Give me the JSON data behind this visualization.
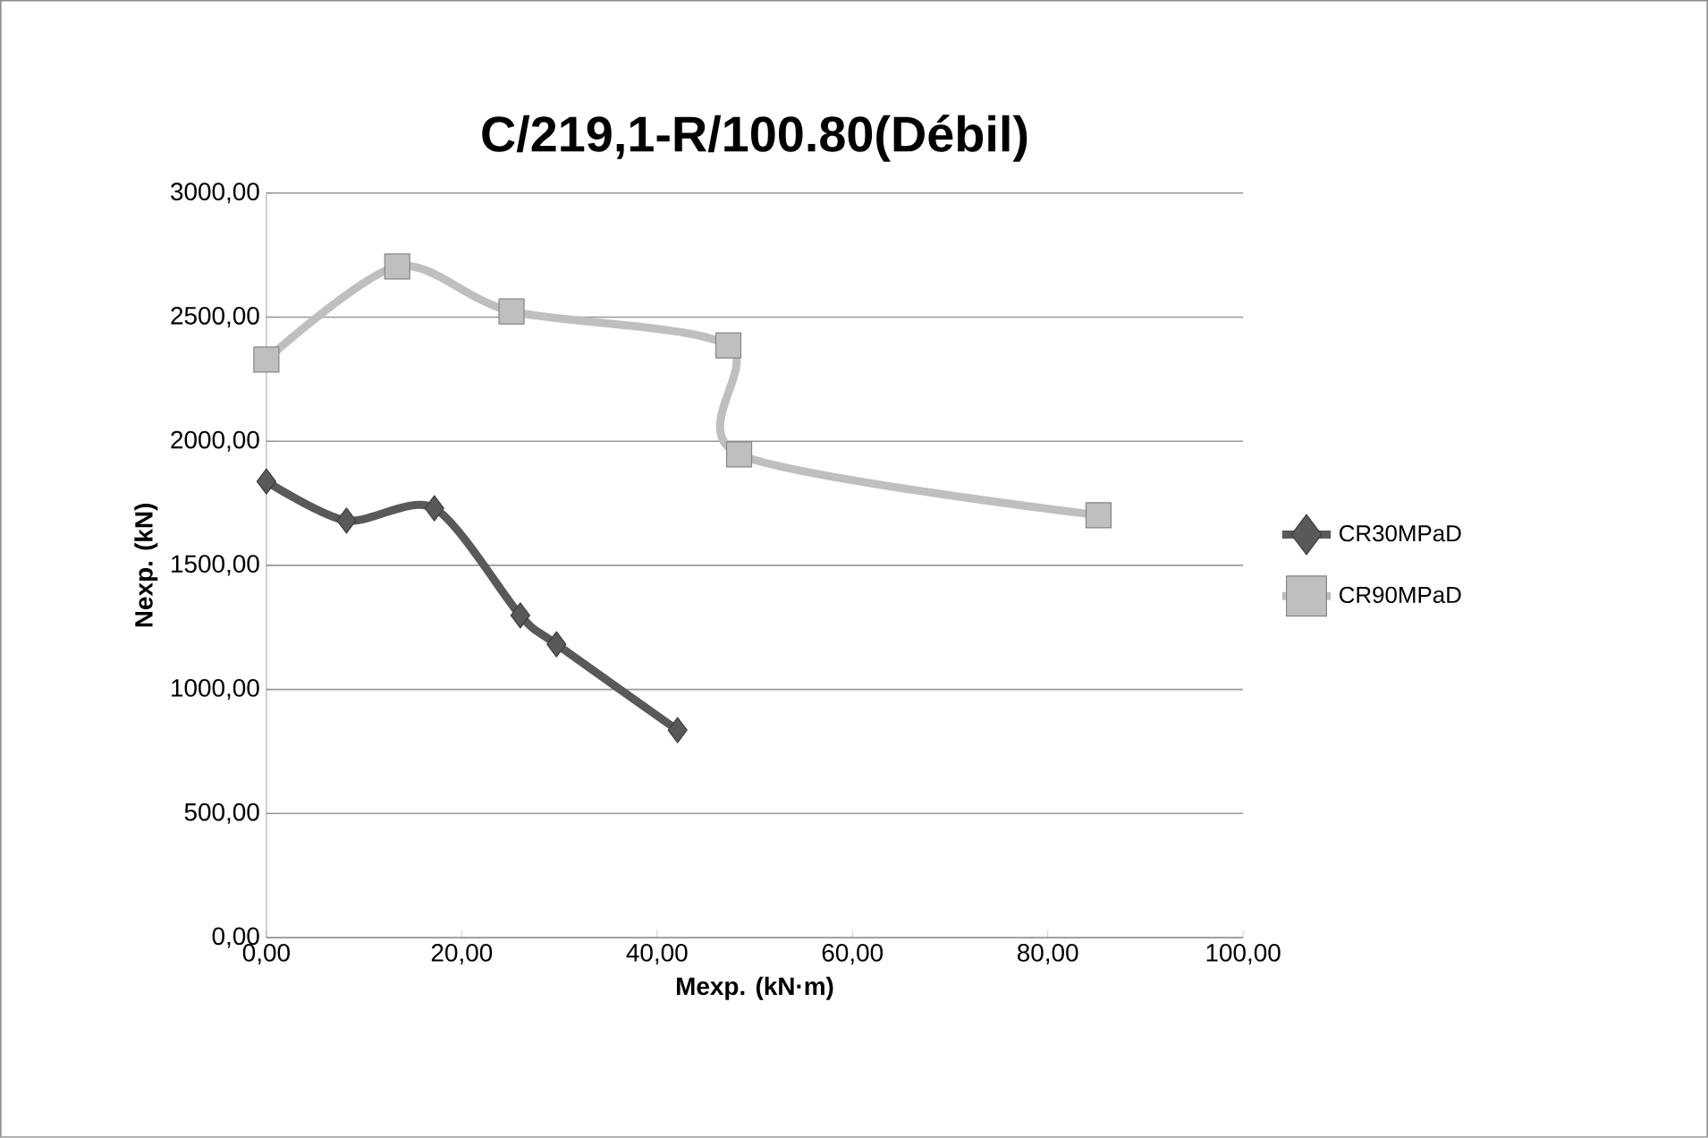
{
  "chart_data": {
    "type": "line",
    "title": "C/219,1-R/100.80(Débil)",
    "xlabel": "Mexp. (kN·m)",
    "ylabel": "Nexp. (kN)",
    "xlim": [
      0,
      100
    ],
    "ylim": [
      0,
      3000
    ],
    "xticks": [
      {
        "value": 0,
        "label": "0,00"
      },
      {
        "value": 20,
        "label": "20,00"
      },
      {
        "value": 40,
        "label": "40,00"
      },
      {
        "value": 60,
        "label": "60,00"
      },
      {
        "value": 80,
        "label": "80,00"
      },
      {
        "value": 100,
        "label": "100,00"
      }
    ],
    "yticks": [
      {
        "value": 0,
        "label": "0,00"
      },
      {
        "value": 500,
        "label": "500,00"
      },
      {
        "value": 1000,
        "label": "1000,00"
      },
      {
        "value": 1500,
        "label": "1500,00"
      },
      {
        "value": 2000,
        "label": "2000,00"
      },
      {
        "value": 2500,
        "label": "2500,00"
      },
      {
        "value": 3000,
        "label": "3000,00"
      }
    ],
    "grid": "y",
    "legend": "right",
    "series": [
      {
        "name": "CR30MPaD",
        "color": "#595959",
        "marker": "diamond",
        "x": [
          0,
          8.2,
          17.2,
          26.0,
          29.7,
          42.1
        ],
        "values": [
          1838,
          1680,
          1730,
          1298,
          1182,
          836
        ]
      },
      {
        "name": "CR90MPaD",
        "color": "#bfbfbf",
        "marker": "square",
        "x": [
          0,
          13.4,
          25.1,
          47.3,
          48.4,
          85.2
        ],
        "values": [
          2329,
          2704,
          2523,
          2386,
          1947,
          1702
        ]
      }
    ]
  }
}
